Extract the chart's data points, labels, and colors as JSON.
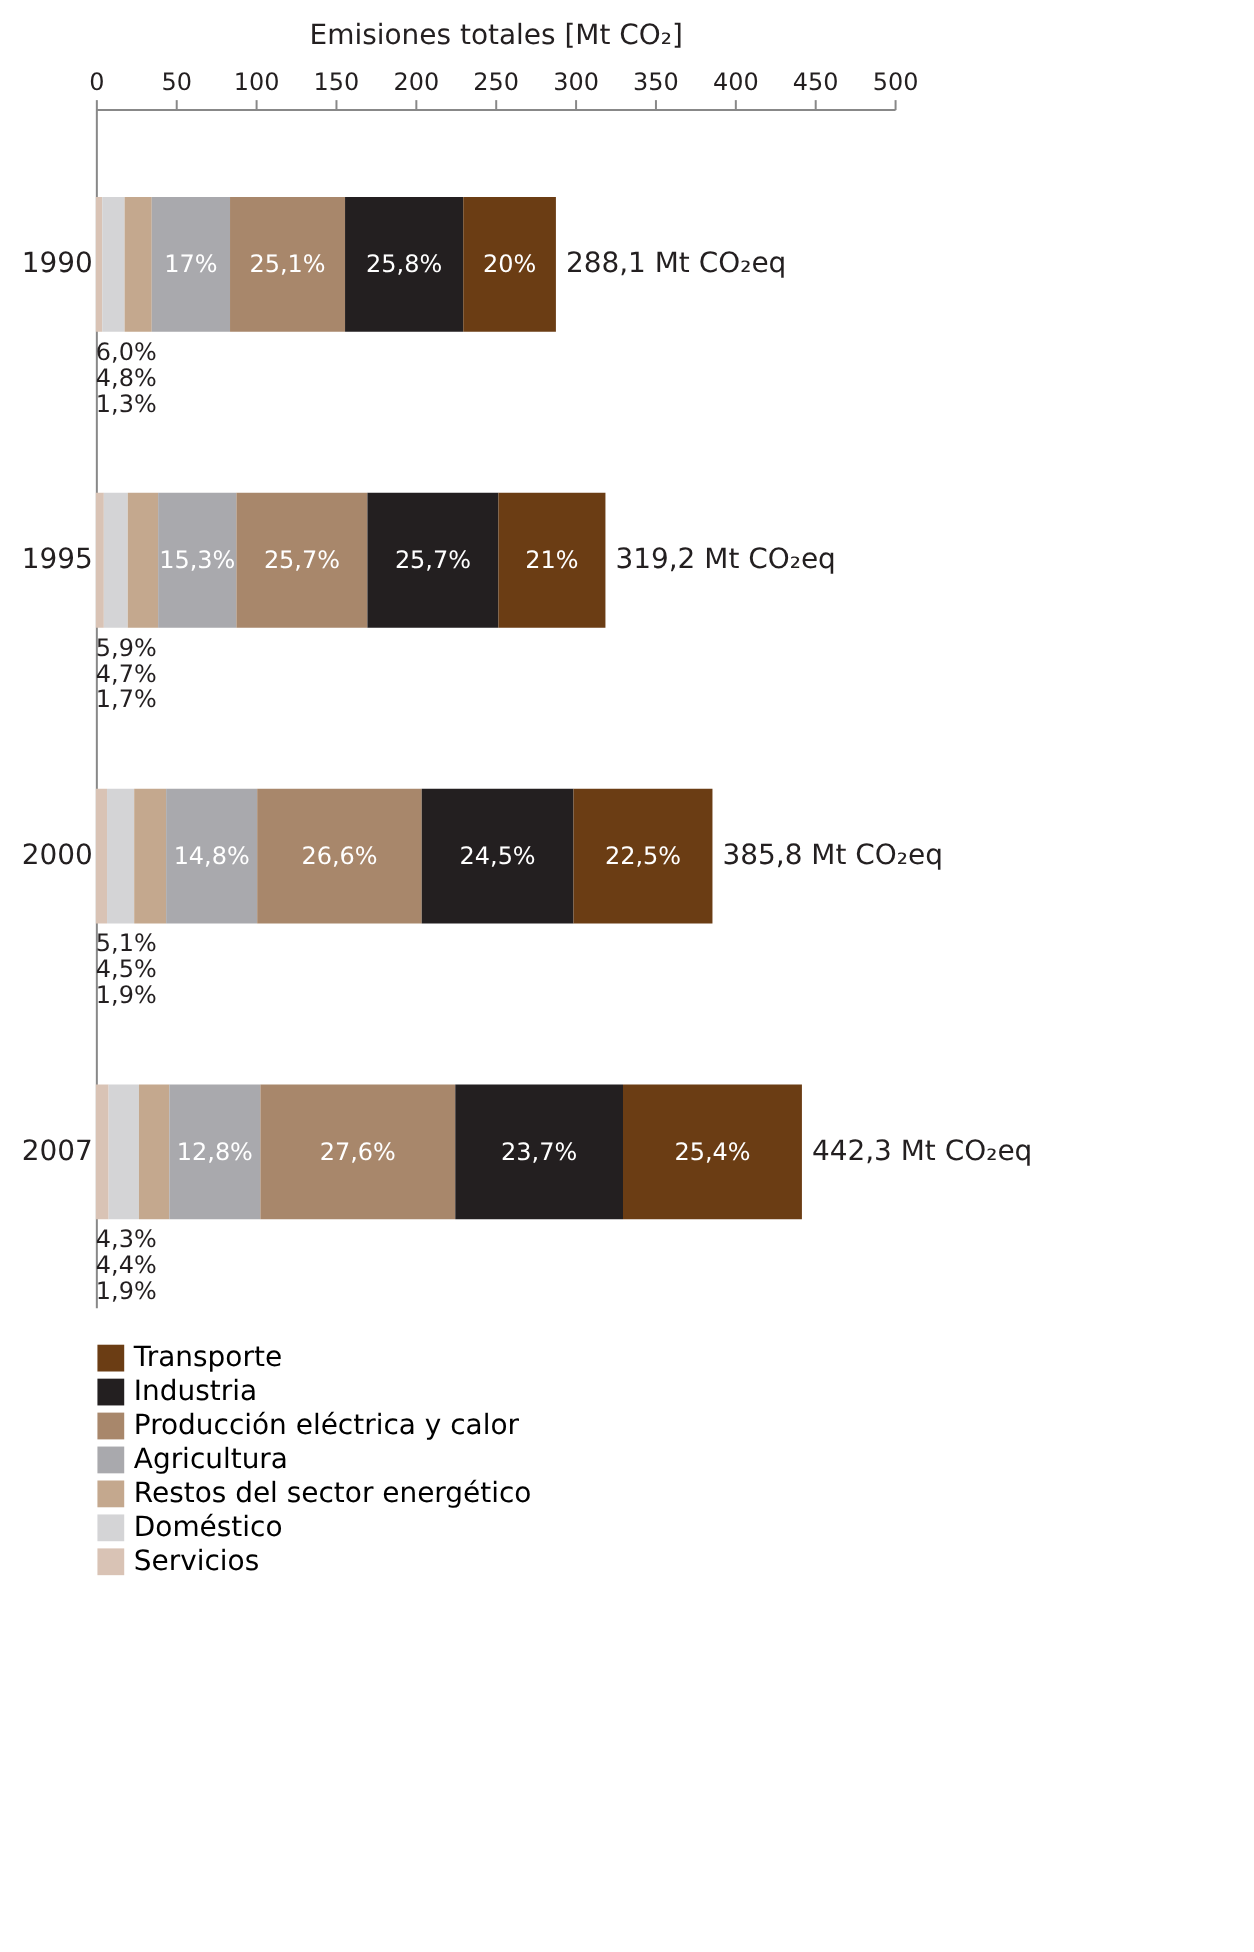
{
  "chart_data": {
    "type": "bar",
    "orientation": "horizontal",
    "stacked": true,
    "title": "Emisiones totales [Mt CO₂]",
    "categories": [
      "1990",
      "1995",
      "2000",
      "2007"
    ],
    "xlim": [
      0,
      500
    ],
    "xticks": [
      0,
      50,
      100,
      150,
      200,
      250,
      300,
      350,
      400,
      450,
      500
    ],
    "grid": false,
    "legend": "bottom",
    "series": [
      {
        "name": "Servicios",
        "color": "#d9c3b5",
        "values": [
          4,
          5,
          7,
          8
        ]
      },
      {
        "name": "Doméstico",
        "color": "#d4d4d6",
        "values": [
          14,
          15,
          17,
          19
        ]
      },
      {
        "name": "Restos del sector energético",
        "color": "#c4a88e",
        "values": [
          17,
          19,
          20,
          19
        ]
      },
      {
        "name": "Agricultura",
        "color": "#a9a9ad",
        "values": [
          49,
          49,
          57,
          57
        ]
      },
      {
        "name": "Producción eléctrica y calor",
        "color": "#a8876b",
        "values": [
          72,
          82,
          103,
          122
        ]
      },
      {
        "name": "Industria",
        "color": "#231f20",
        "values": [
          74,
          82,
          95,
          105
        ]
      },
      {
        "name": "Transporte",
        "color": "#6b3d14",
        "values": [
          58,
          67,
          87,
          112
        ]
      }
    ],
    "totals": [
      "288,1 Mt CO₂eq",
      "319,2 Mt CO₂eq",
      "385,8 Mt CO₂eq",
      "442,3 Mt CO₂eq"
    ],
    "annotations": [
      "1,3%",
      "4,8%",
      "6,0%",
      "17%",
      "25,1%",
      "25,8%",
      "20%",
      "1,7%",
      "4,7%",
      "5,9%",
      "15,3%",
      "25,7%",
      "25,7%",
      "21%",
      "1,9%",
      "4,5%",
      "5,1%",
      "14,8%",
      "26,6%",
      "24,5%",
      "22,5%",
      "1,9%",
      "4,4%",
      "4,3%",
      "12,8%",
      "27,6%",
      "23,7%",
      "25,4%"
    ]
  }
}
